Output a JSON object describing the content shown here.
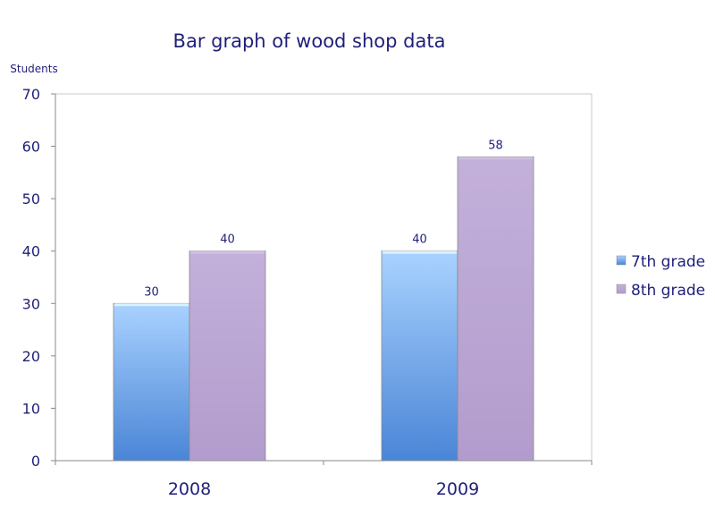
{
  "chart_data": {
    "type": "bar",
    "title": "Bar graph of wood shop data",
    "ylabel": "Students",
    "xlabel": "",
    "categories": [
      "2008",
      "2009"
    ],
    "ylim": [
      0,
      70
    ],
    "yticks": [
      0,
      10,
      20,
      30,
      40,
      50,
      60,
      70
    ],
    "grid": false,
    "legend": "right",
    "series": [
      {
        "name": "7th grade",
        "values": [
          30,
          40
        ],
        "color": "#6fa6ec"
      },
      {
        "name": "8th grade",
        "values": [
          40,
          58
        ],
        "color": "#b9a3d2"
      }
    ]
  }
}
